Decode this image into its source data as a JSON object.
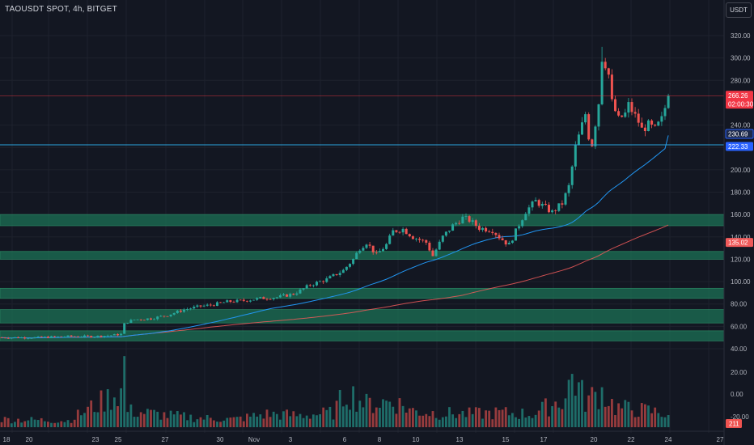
{
  "header": {
    "title": "TAOUSDT SPOT, 4h, BITGET",
    "currency_button": "USDT"
  },
  "colors": {
    "background": "#131722",
    "grid": "#1e222d",
    "up": "#26a69a",
    "down": "#ef5350",
    "zone": "#1b6e53",
    "ma_fast": "#2196f3",
    "ma_slow": "#f05a5a",
    "current_price_tag": "#f23645",
    "level_tag": "#2962ff",
    "ma_slow_tag": "#f05a5a"
  },
  "chart_data": {
    "type": "candlestick",
    "title": "TAOUSDT SPOT, 4h, BITGET",
    "price_axis": {
      "ticks": [
        "320.00",
        "300.00",
        "280.00",
        "240.00",
        "220.00",
        "200.00",
        "180.00",
        "160.00",
        "140.00",
        "120.00",
        "100.00",
        "80.00",
        "60.00",
        "40.00"
      ],
      "range": [
        40,
        320
      ]
    },
    "volume_axis": {
      "ticks": [
        "20.00",
        "0.00",
        "-20.00"
      ]
    },
    "x_axis": {
      "ticks": [
        "18",
        "20",
        "23",
        "25",
        "27",
        "30",
        "Nov",
        "3",
        "6",
        "8",
        "10",
        "13",
        "15",
        "17",
        "20",
        "22",
        "24",
        "27"
      ]
    },
    "price_tags": [
      {
        "label": "266.26",
        "sub": "02:00:30",
        "value": 266.26,
        "kind": "current"
      },
      {
        "label": "230.69",
        "value": 230.69,
        "kind": "ma_fast"
      },
      {
        "label": "222.33",
        "value": 222.33,
        "kind": "level"
      },
      {
        "label": "135.02",
        "value": 135.02,
        "kind": "ma_slow"
      }
    ],
    "volume_tag": {
      "label": "211"
    },
    "horizontal_line": 222.33,
    "current_price_line": 266.26,
    "zones": [
      [
        150,
        160
      ],
      [
        120,
        127
      ],
      [
        85,
        94
      ],
      [
        63,
        75
      ],
      [
        47,
        56
      ]
    ],
    "price_path": [
      [
        0,
        50
      ],
      [
        10,
        50
      ],
      [
        20,
        51
      ],
      [
        28,
        51
      ],
      [
        33,
        52
      ],
      [
        36,
        53
      ],
      [
        37,
        62
      ],
      [
        38,
        64
      ],
      [
        40,
        66
      ],
      [
        45,
        67
      ],
      [
        50,
        70
      ],
      [
        55,
        75
      ],
      [
        60,
        78
      ],
      [
        63,
        79
      ],
      [
        68,
        82
      ],
      [
        73,
        83
      ],
      [
        78,
        85
      ],
      [
        83,
        86
      ],
      [
        88,
        89
      ],
      [
        90,
        92
      ],
      [
        93,
        97
      ],
      [
        98,
        102
      ],
      [
        103,
        110
      ],
      [
        106,
        120
      ],
      [
        108,
        130
      ],
      [
        110,
        135
      ],
      [
        113,
        124
      ],
      [
        116,
        133
      ],
      [
        118,
        145
      ],
      [
        121,
        147
      ],
      [
        124,
        140
      ],
      [
        128,
        135
      ],
      [
        130,
        123
      ],
      [
        133,
        140
      ],
      [
        136,
        150
      ],
      [
        139,
        157
      ],
      [
        141,
        155
      ],
      [
        144,
        148
      ],
      [
        148,
        146
      ],
      [
        150,
        140
      ],
      [
        152,
        135
      ],
      [
        153,
        133
      ],
      [
        155,
        145
      ],
      [
        158,
        163
      ],
      [
        161,
        172
      ],
      [
        163,
        168
      ],
      [
        166,
        162
      ],
      [
        169,
        170
      ],
      [
        171,
        185
      ],
      [
        173,
        220
      ],
      [
        175,
        240
      ],
      [
        176,
        250
      ],
      [
        177,
        230
      ],
      [
        178,
        223
      ],
      [
        180,
        260
      ],
      [
        181,
        300
      ],
      [
        182,
        295
      ],
      [
        183,
        285
      ],
      [
        184,
        260
      ],
      [
        186,
        245
      ],
      [
        188,
        250
      ],
      [
        189,
        258
      ],
      [
        191,
        248
      ],
      [
        192,
        243
      ],
      [
        193,
        236
      ],
      [
        195,
        240
      ],
      [
        197,
        236
      ],
      [
        199,
        245
      ],
      [
        201,
        266
      ]
    ],
    "volume_path": [
      [
        0,
        0.12
      ],
      [
        20,
        0.1
      ],
      [
        36,
        0.55
      ],
      [
        37,
        0.95
      ],
      [
        38,
        0.25
      ],
      [
        50,
        0.18
      ],
      [
        60,
        0.14
      ],
      [
        70,
        0.12
      ],
      [
        80,
        0.2
      ],
      [
        90,
        0.18
      ],
      [
        100,
        0.22
      ],
      [
        104,
        0.55
      ],
      [
        110,
        0.35
      ],
      [
        118,
        0.4
      ],
      [
        124,
        0.25
      ],
      [
        130,
        0.22
      ],
      [
        140,
        0.2
      ],
      [
        150,
        0.22
      ],
      [
        160,
        0.2
      ],
      [
        170,
        0.45
      ],
      [
        172,
        0.8
      ],
      [
        176,
        0.4
      ],
      [
        181,
        0.55
      ],
      [
        185,
        0.3
      ],
      [
        195,
        0.25
      ],
      [
        201,
        0.2
      ]
    ]
  }
}
